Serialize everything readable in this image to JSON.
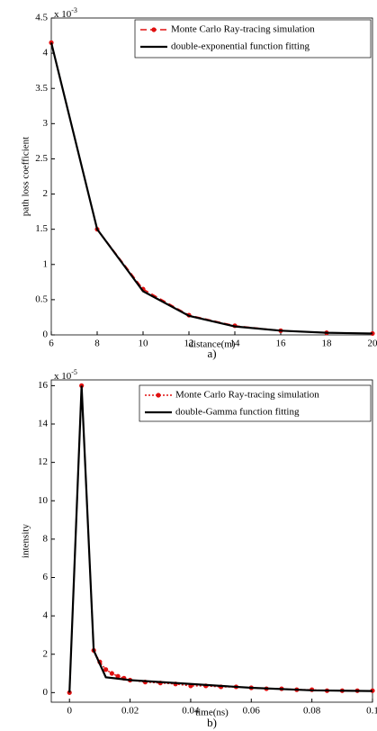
{
  "chart_data": [
    {
      "type": "line",
      "multiplier": "x 10",
      "multiplier_exp": "-3",
      "xlabel": "distance(m)",
      "ylabel": "path loss coefficient",
      "caption": "a)",
      "xlim": [
        6,
        20
      ],
      "xticks": [
        6,
        8,
        10,
        12,
        14,
        16,
        18,
        20
      ],
      "ylim": [
        0,
        4.5
      ],
      "yticks": [
        0,
        0.5,
        1,
        1.5,
        2,
        2.5,
        3,
        3.5,
        4,
        4.5
      ],
      "legend": "upper right",
      "series": [
        {
          "name": "Monte Carlo Ray-tracing simulation",
          "color": "#e01010",
          "style": "dashed",
          "markers": true,
          "x": [
            6,
            8,
            10,
            12,
            14,
            16,
            18,
            20
          ],
          "values": [
            4.15,
            1.5,
            0.65,
            0.28,
            0.13,
            0.06,
            0.03,
            0.02
          ]
        },
        {
          "name": "double-exponential function fitting",
          "color": "#000000",
          "style": "solid",
          "markers": false,
          "x": [
            6,
            8,
            10,
            12,
            14,
            16,
            18,
            20
          ],
          "values": [
            4.15,
            1.5,
            0.62,
            0.27,
            0.12,
            0.06,
            0.03,
            0.02
          ]
        }
      ]
    },
    {
      "type": "line",
      "multiplier": "x 10",
      "multiplier_exp": "-5",
      "xlabel": "time(ns)",
      "ylabel": "intensity",
      "caption": "b)",
      "xlim": [
        -0.006,
        0.1
      ],
      "xticks": [
        0,
        0.02,
        0.04,
        0.06,
        0.08,
        0.1
      ],
      "ylim": [
        -0.5,
        16.3
      ],
      "yticks": [
        0,
        2,
        4,
        6,
        8,
        10,
        12,
        14,
        16
      ],
      "legend": "upper right",
      "series": [
        {
          "name": "Monte Carlo Ray-tracing simulation",
          "color": "#e01010",
          "style": "dotted",
          "markers": true,
          "x": [
            0,
            0.004,
            0.008,
            0.01,
            0.012,
            0.014,
            0.016,
            0.018,
            0.02,
            0.025,
            0.03,
            0.035,
            0.04,
            0.045,
            0.05,
            0.055,
            0.06,
            0.065,
            0.07,
            0.075,
            0.08,
            0.085,
            0.09,
            0.095,
            0.1
          ],
          "values": [
            0,
            16,
            2.2,
            1.6,
            1.2,
            1.0,
            0.85,
            0.75,
            0.65,
            0.55,
            0.5,
            0.45,
            0.35,
            0.35,
            0.3,
            0.3,
            0.25,
            0.2,
            0.2,
            0.15,
            0.15,
            0.1,
            0.1,
            0.1,
            0.1
          ]
        },
        {
          "name": "double-Gamma function fitting",
          "color": "#000000",
          "style": "solid",
          "markers": false,
          "x": [
            0,
            0.004,
            0.008,
            0.012,
            0.02,
            0.04,
            0.06,
            0.08,
            0.1
          ],
          "values": [
            0,
            16,
            2.2,
            0.8,
            0.65,
            0.45,
            0.25,
            0.12,
            0.08
          ]
        }
      ]
    }
  ]
}
